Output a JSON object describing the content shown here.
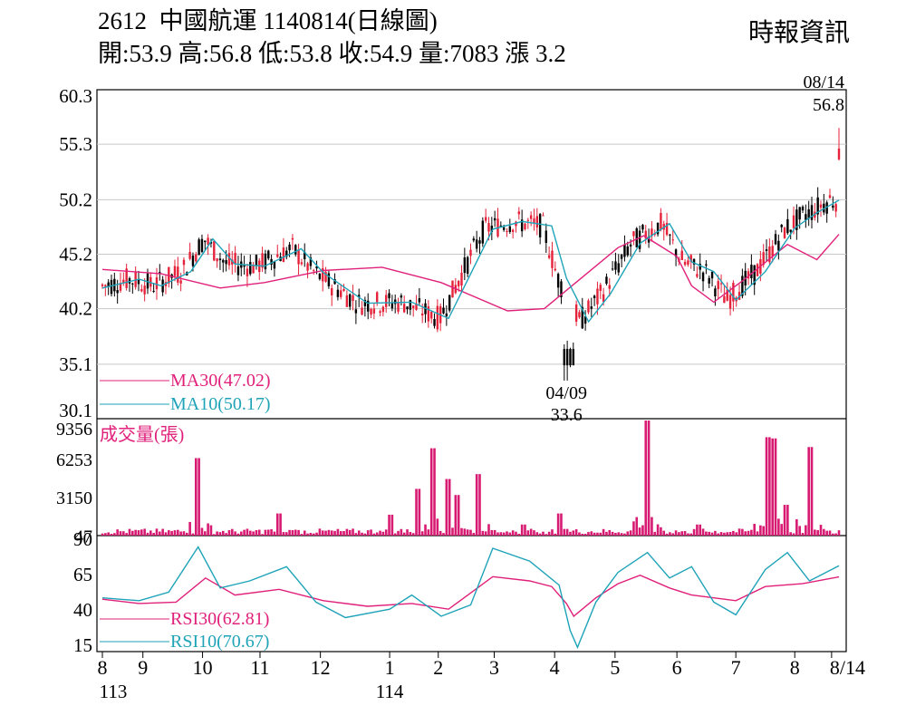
{
  "header": {
    "title": "2612  中國航運 1140814(日線圖)",
    "ohlc": "開:53.9 高:56.8 低:53.8 收:54.9 量:7083 漲 3.2",
    "brand": "時報資訊"
  },
  "chart_data": {
    "type": "candlestick",
    "price_panel": {
      "yticks": [
        "60.3",
        "55.3",
        "50.2",
        "45.2",
        "40.2",
        "35.1",
        "30.1"
      ],
      "ylim": [
        30.1,
        60.3
      ],
      "legend": [
        {
          "label": "MA30(47.02)",
          "color": "#e0207a"
        },
        {
          "label": "MA10(50.17)",
          "color": "#1ea3b8"
        }
      ],
      "annotations": [
        {
          "date": "08/14",
          "value": "56.8"
        },
        {
          "date": "04/09",
          "value": "33.6"
        }
      ],
      "series": [
        {
          "name": "MA30",
          "color": "#e0207a",
          "points": [
            [
              0,
              43.8
            ],
            [
              0.08,
              43.4
            ],
            [
              0.16,
              42.1
            ],
            [
              0.22,
              42.6
            ],
            [
              0.3,
              43.7
            ],
            [
              0.38,
              44.0
            ],
            [
              0.46,
              42.6
            ],
            [
              0.55,
              40.0
            ],
            [
              0.6,
              40.2
            ],
            [
              0.7,
              45.8
            ],
            [
              0.735,
              46.9
            ],
            [
              0.78,
              45.0
            ],
            [
              0.8,
              42.3
            ],
            [
              0.83,
              40.8
            ],
            [
              0.87,
              42.8
            ],
            [
              0.93,
              46.1
            ],
            [
              0.97,
              44.7
            ],
            [
              1.0,
              47.02
            ]
          ]
        },
        {
          "name": "MA10",
          "color": "#1ea3b8",
          "points": [
            [
              0,
              42.1
            ],
            [
              0.05,
              42.9
            ],
            [
              0.08,
              42.3
            ],
            [
              0.12,
              43.6
            ],
            [
              0.15,
              46.6
            ],
            [
              0.18,
              44.3
            ],
            [
              0.22,
              44.1
            ],
            [
              0.27,
              45.7
            ],
            [
              0.3,
              43.5
            ],
            [
              0.36,
              40.7
            ],
            [
              0.42,
              40.8
            ],
            [
              0.47,
              39.3
            ],
            [
              0.53,
              47.5
            ],
            [
              0.57,
              48.2
            ],
            [
              0.61,
              47.8
            ],
            [
              0.63,
              43.0
            ],
            [
              0.66,
              39.0
            ],
            [
              0.69,
              41.6
            ],
            [
              0.73,
              46.2
            ],
            [
              0.77,
              48.0
            ],
            [
              0.8,
              44.5
            ],
            [
              0.83,
              43.6
            ],
            [
              0.86,
              41.0
            ],
            [
              0.9,
              43.6
            ],
            [
              0.94,
              47.6
            ],
            [
              0.97,
              49.0
            ],
            [
              1.0,
              50.17
            ]
          ]
        }
      ]
    },
    "volume_panel": {
      "label": "成交量(張)",
      "yticks": [
        "9356",
        "6253",
        "3150",
        "47"
      ],
      "ylim": [
        0,
        9356
      ],
      "spikes": [
        [
          0.13,
          6300
        ],
        [
          0.24,
          1800
        ],
        [
          0.39,
          1700
        ],
        [
          0.43,
          3800
        ],
        [
          0.45,
          7100
        ],
        [
          0.47,
          4600
        ],
        [
          0.48,
          3300
        ],
        [
          0.51,
          5000
        ],
        [
          0.57,
          900
        ],
        [
          0.62,
          1800
        ],
        [
          0.74,
          9356
        ],
        [
          0.81,
          900
        ],
        [
          0.905,
          8000
        ],
        [
          0.91,
          7900
        ],
        [
          0.93,
          2500
        ],
        [
          0.96,
          7200
        ]
      ]
    },
    "rsi_panel": {
      "yticks": [
        "90",
        "65",
        "40",
        "15"
      ],
      "ylim": [
        10,
        92
      ],
      "legend": [
        {
          "label": "RSI30(62.81)",
          "color": "#e0207a"
        },
        {
          "label": "RSI10(70.67)",
          "color": "#1ea3b8"
        }
      ],
      "series": [
        {
          "name": "RSI30",
          "color": "#e0207a",
          "points": [
            [
              0,
              47
            ],
            [
              0.05,
              44
            ],
            [
              0.1,
              45
            ],
            [
              0.14,
              62
            ],
            [
              0.18,
              50
            ],
            [
              0.24,
              54
            ],
            [
              0.3,
              46
            ],
            [
              0.36,
              42
            ],
            [
              0.42,
              44
            ],
            [
              0.47,
              40
            ],
            [
              0.53,
              63
            ],
            [
              0.58,
              60
            ],
            [
              0.61,
              56
            ],
            [
              0.63,
              44
            ],
            [
              0.64,
              35
            ],
            [
              0.67,
              48
            ],
            [
              0.7,
              58
            ],
            [
              0.73,
              64
            ],
            [
              0.77,
              55
            ],
            [
              0.8,
              50
            ],
            [
              0.86,
              46
            ],
            [
              0.9,
              56
            ],
            [
              0.95,
              58
            ],
            [
              1.0,
              62.81
            ]
          ]
        },
        {
          "name": "RSI10",
          "color": "#1ea3b8",
          "points": [
            [
              0,
              48
            ],
            [
              0.05,
              46
            ],
            [
              0.09,
              52
            ],
            [
              0.13,
              84
            ],
            [
              0.16,
              55
            ],
            [
              0.2,
              60
            ],
            [
              0.25,
              70
            ],
            [
              0.29,
              45
            ],
            [
              0.33,
              34
            ],
            [
              0.39,
              40
            ],
            [
              0.42,
              50
            ],
            [
              0.46,
              35
            ],
            [
              0.5,
              43
            ],
            [
              0.53,
              83
            ],
            [
              0.58,
              74
            ],
            [
              0.62,
              57
            ],
            [
              0.635,
              25
            ],
            [
              0.645,
              13
            ],
            [
              0.67,
              45
            ],
            [
              0.7,
              66
            ],
            [
              0.74,
              80
            ],
            [
              0.77,
              62
            ],
            [
              0.8,
              70
            ],
            [
              0.83,
              45
            ],
            [
              0.86,
              36
            ],
            [
              0.9,
              68
            ],
            [
              0.93,
              80
            ],
            [
              0.96,
              60
            ],
            [
              1.0,
              70.67
            ]
          ]
        }
      ]
    },
    "x_axis": {
      "ticks": [
        "8",
        "9",
        "10",
        "11",
        "12",
        "1",
        "2",
        "3",
        "4",
        "5",
        "6",
        "7",
        "8",
        "8/14"
      ],
      "tick_positions": [
        0,
        0.055,
        0.136,
        0.214,
        0.296,
        0.39,
        0.456,
        0.532,
        0.614,
        0.696,
        0.78,
        0.86,
        0.94,
        0.99
      ],
      "year_labels": [
        {
          "text": "113",
          "at": 0
        },
        {
          "text": "114",
          "at": 0.39
        }
      ]
    }
  }
}
